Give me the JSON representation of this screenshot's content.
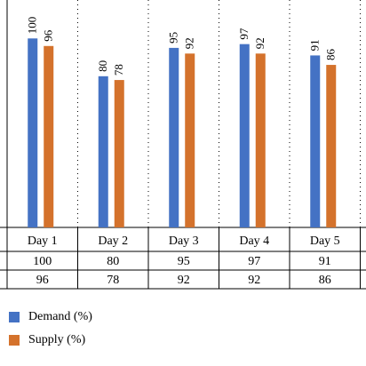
{
  "chart_data": {
    "type": "bar",
    "categories": [
      "Day 1",
      "Day 2",
      "Day 3",
      "Day 4",
      "Day 5"
    ],
    "series": [
      {
        "name": "Demand (%)",
        "values": [
          100,
          80,
          95,
          97,
          91
        ],
        "color": "#4472C4"
      },
      {
        "name": "Supply (%)",
        "values": [
          96,
          78,
          92,
          92,
          86
        ],
        "color": "#D4722C"
      }
    ],
    "ylim": [
      0,
      110
    ],
    "grid": "dotted vertical separators",
    "legend_placement": "bottom-left"
  }
}
